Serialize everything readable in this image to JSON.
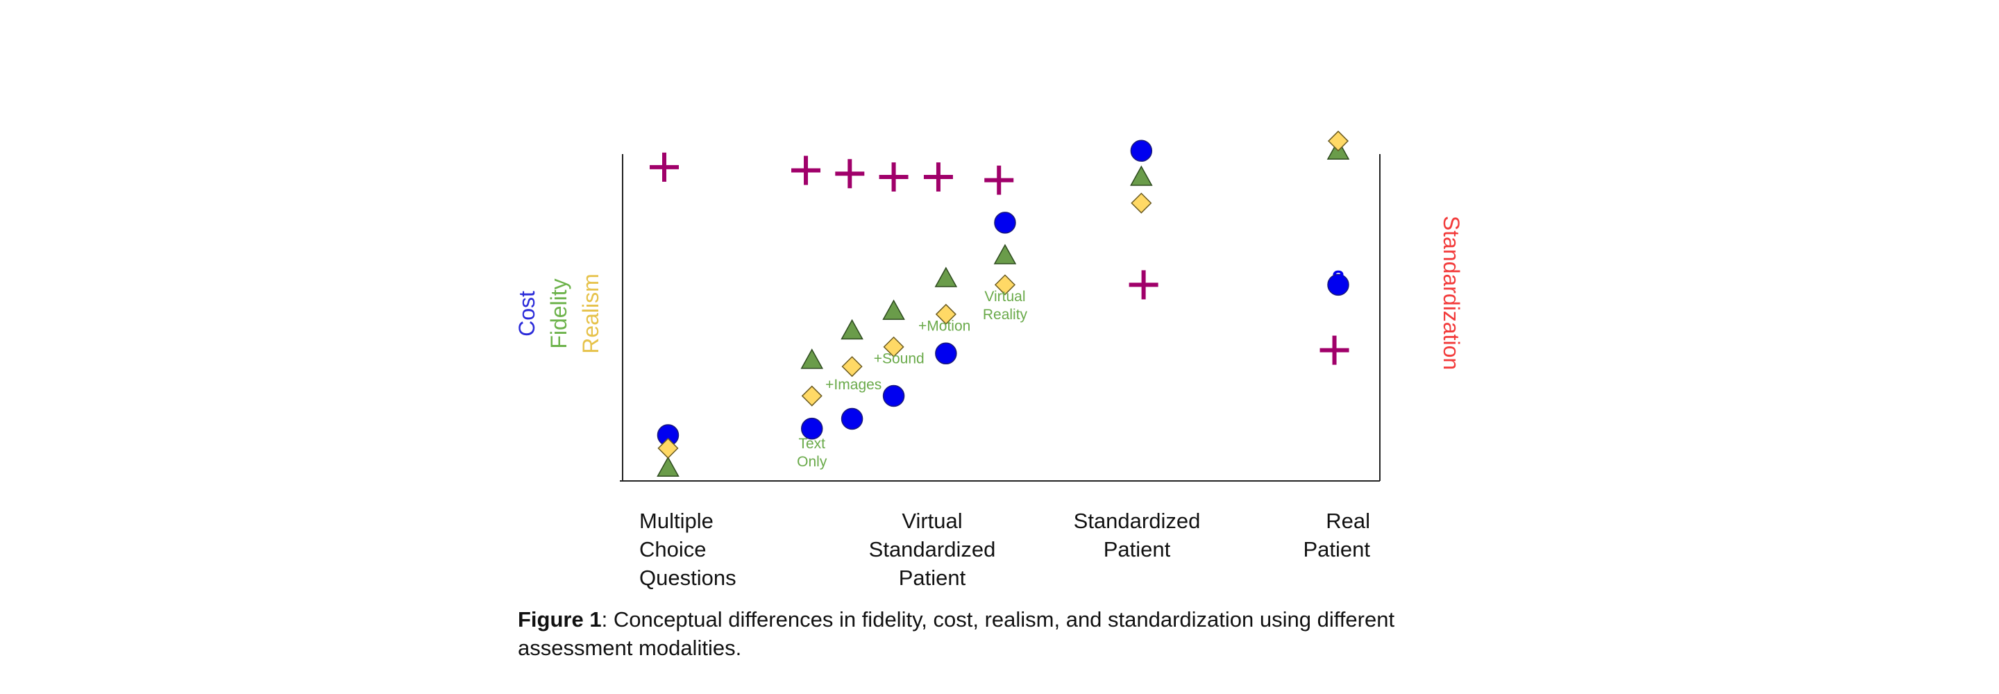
{
  "chart_data": {
    "type": "scatter",
    "categories": [
      "Multiple\nChoice\nQuestions",
      "Virtual\nStandardized\nPatient",
      "Standardized\nPatient",
      "Real\nPatient"
    ],
    "left_axis_labels": [
      {
        "text": "Cost",
        "color": "#2b2bd9"
      },
      {
        "text": "Fidelity",
        "color": "#6cb24a"
      },
      {
        "text": "Realism",
        "color": "#e6c24a"
      }
    ],
    "right_axis_label": {
      "text": "Standardization",
      "color": "#f23a3a"
    },
    "colors": {
      "cost": "#0000f0",
      "fidelity": "#6a9c4a",
      "realism": "#ffd966",
      "standardization": "#a0006a",
      "annotation": "#6aaa4a"
    },
    "x_range": [
      0,
      100
    ],
    "y_range": [
      0,
      100
    ],
    "series": [
      {
        "name": "Cost",
        "marker": "circle",
        "points": [
          [
            6,
            14
          ],
          [
            25,
            16
          ],
          [
            30.3,
            19
          ],
          [
            35.8,
            26
          ],
          [
            42.7,
            39
          ],
          [
            50.5,
            79
          ],
          [
            68.5,
            101
          ],
          [
            94.5,
            60
          ]
        ]
      },
      {
        "name": "Fidelity",
        "marker": "triangle",
        "points": [
          [
            6,
            4
          ],
          [
            25,
            37
          ],
          [
            30.3,
            46
          ],
          [
            35.8,
            52
          ],
          [
            42.7,
            62
          ],
          [
            50.5,
            69
          ],
          [
            68.5,
            93
          ],
          [
            94.5,
            101
          ]
        ]
      },
      {
        "name": "Realism",
        "marker": "diamond",
        "points": [
          [
            6,
            10
          ],
          [
            25,
            26
          ],
          [
            30.3,
            35
          ],
          [
            35.8,
            41
          ],
          [
            42.7,
            51
          ],
          [
            50.5,
            60
          ],
          [
            68.5,
            85
          ],
          [
            94.5,
            104
          ]
        ]
      },
      {
        "name": "Standardization",
        "marker": "plus",
        "points": [
          [
            5.5,
            96
          ],
          [
            24.2,
            95
          ],
          [
            30,
            94
          ],
          [
            35.8,
            93
          ],
          [
            41.7,
            93
          ],
          [
            49.7,
            92
          ],
          [
            68.8,
            60
          ],
          [
            94,
            40
          ]
        ]
      }
    ],
    "annotations": [
      {
        "text": "Text\nOnly",
        "x": 25,
        "y": 10
      },
      {
        "text": "+Images",
        "x": 30.5,
        "y": 28
      },
      {
        "text": "+Sound",
        "x": 36.5,
        "y": 36
      },
      {
        "text": "+Motion",
        "x": 42.5,
        "y": 46
      },
      {
        "text": "Virtual\nReality",
        "x": 50.5,
        "y": 55
      },
      {
        "text": "?",
        "x": 94.5,
        "y": 60
      }
    ]
  },
  "caption": {
    "bold": "Figure 1",
    "text": ": Conceptual differences in fidelity, cost, realism, and standardization using different assessment modalities."
  }
}
